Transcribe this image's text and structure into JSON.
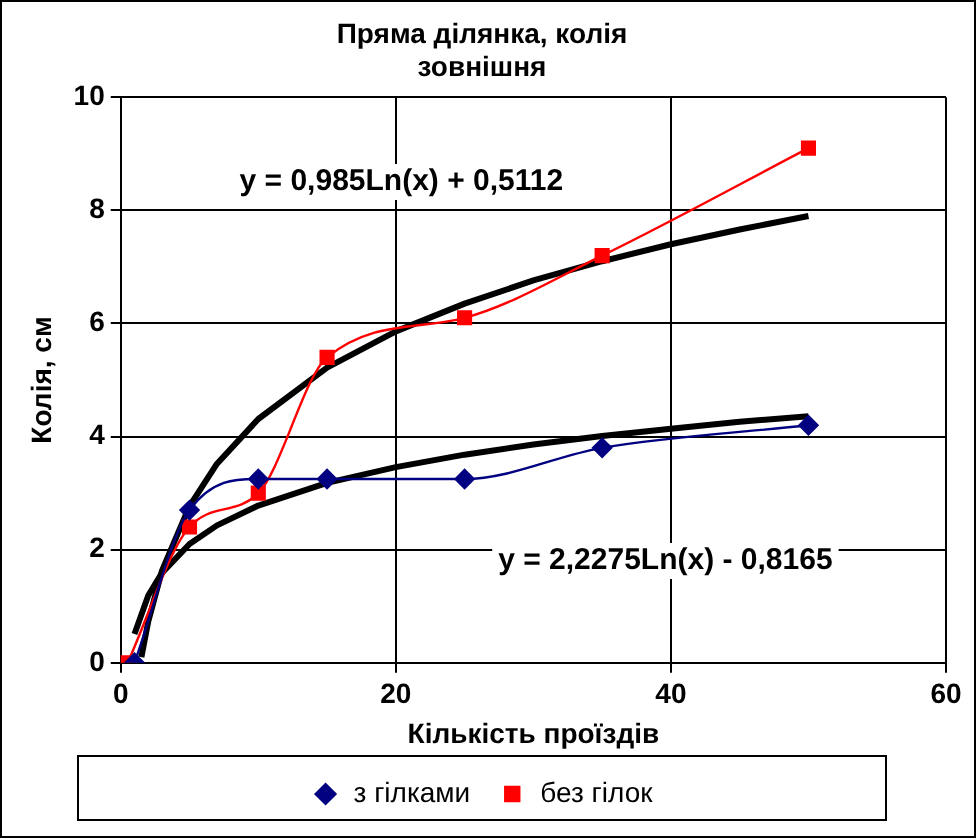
{
  "chart_data": {
    "type": "line",
    "title": "Пряма ділянка, колія зовнішня",
    "xlabel": "Кількість проїздів",
    "ylabel": "Колія, см",
    "xlim": [
      0,
      60
    ],
    "xticks": [
      0,
      20,
      40,
      60
    ],
    "ylim": [
      0,
      10
    ],
    "yticks": [
      0,
      2,
      4,
      6,
      8,
      10
    ],
    "grid": true,
    "legend": "bottom",
    "series": [
      {
        "name": "з гілками",
        "color": "#000080",
        "marker": "diamond",
        "x": [
          1,
          5,
          10,
          15,
          25,
          35,
          50
        ],
        "values": [
          0,
          2.7,
          3.25,
          3.25,
          3.25,
          3.8,
          4.2
        ]
      },
      {
        "name": "без гілок",
        "color": "#ff0000",
        "marker": "square",
        "x": [
          0.5,
          5,
          10,
          15,
          25,
          35,
          50
        ],
        "values": [
          0,
          2.4,
          3.0,
          5.4,
          6.1,
          7.2,
          9.1
        ]
      },
      {
        "color": "#000000",
        "marker": "none",
        "x": [
          1,
          2,
          3,
          5,
          7,
          10,
          15,
          20,
          25,
          30,
          35,
          40,
          45,
          50
        ],
        "values": [
          0.51,
          1.19,
          1.59,
          2.1,
          2.43,
          2.78,
          3.18,
          3.46,
          3.68,
          3.86,
          4.01,
          4.14,
          4.26,
          4.36
        ]
      },
      {
        "color": "#000000",
        "marker": "none",
        "x": [
          1.5,
          2,
          3,
          5,
          7,
          10,
          15,
          20,
          25,
          30,
          35,
          40,
          45,
          50
        ],
        "values": [
          0.1,
          0.73,
          1.63,
          2.77,
          3.52,
          4.31,
          5.22,
          5.86,
          6.35,
          6.76,
          7.1,
          7.4,
          7.66,
          7.9
        ]
      }
    ],
    "annotations": [
      "y = 0,985Ln(x) + 0,5112",
      "y = 2,2275Ln(x) - 0,8165"
    ]
  }
}
